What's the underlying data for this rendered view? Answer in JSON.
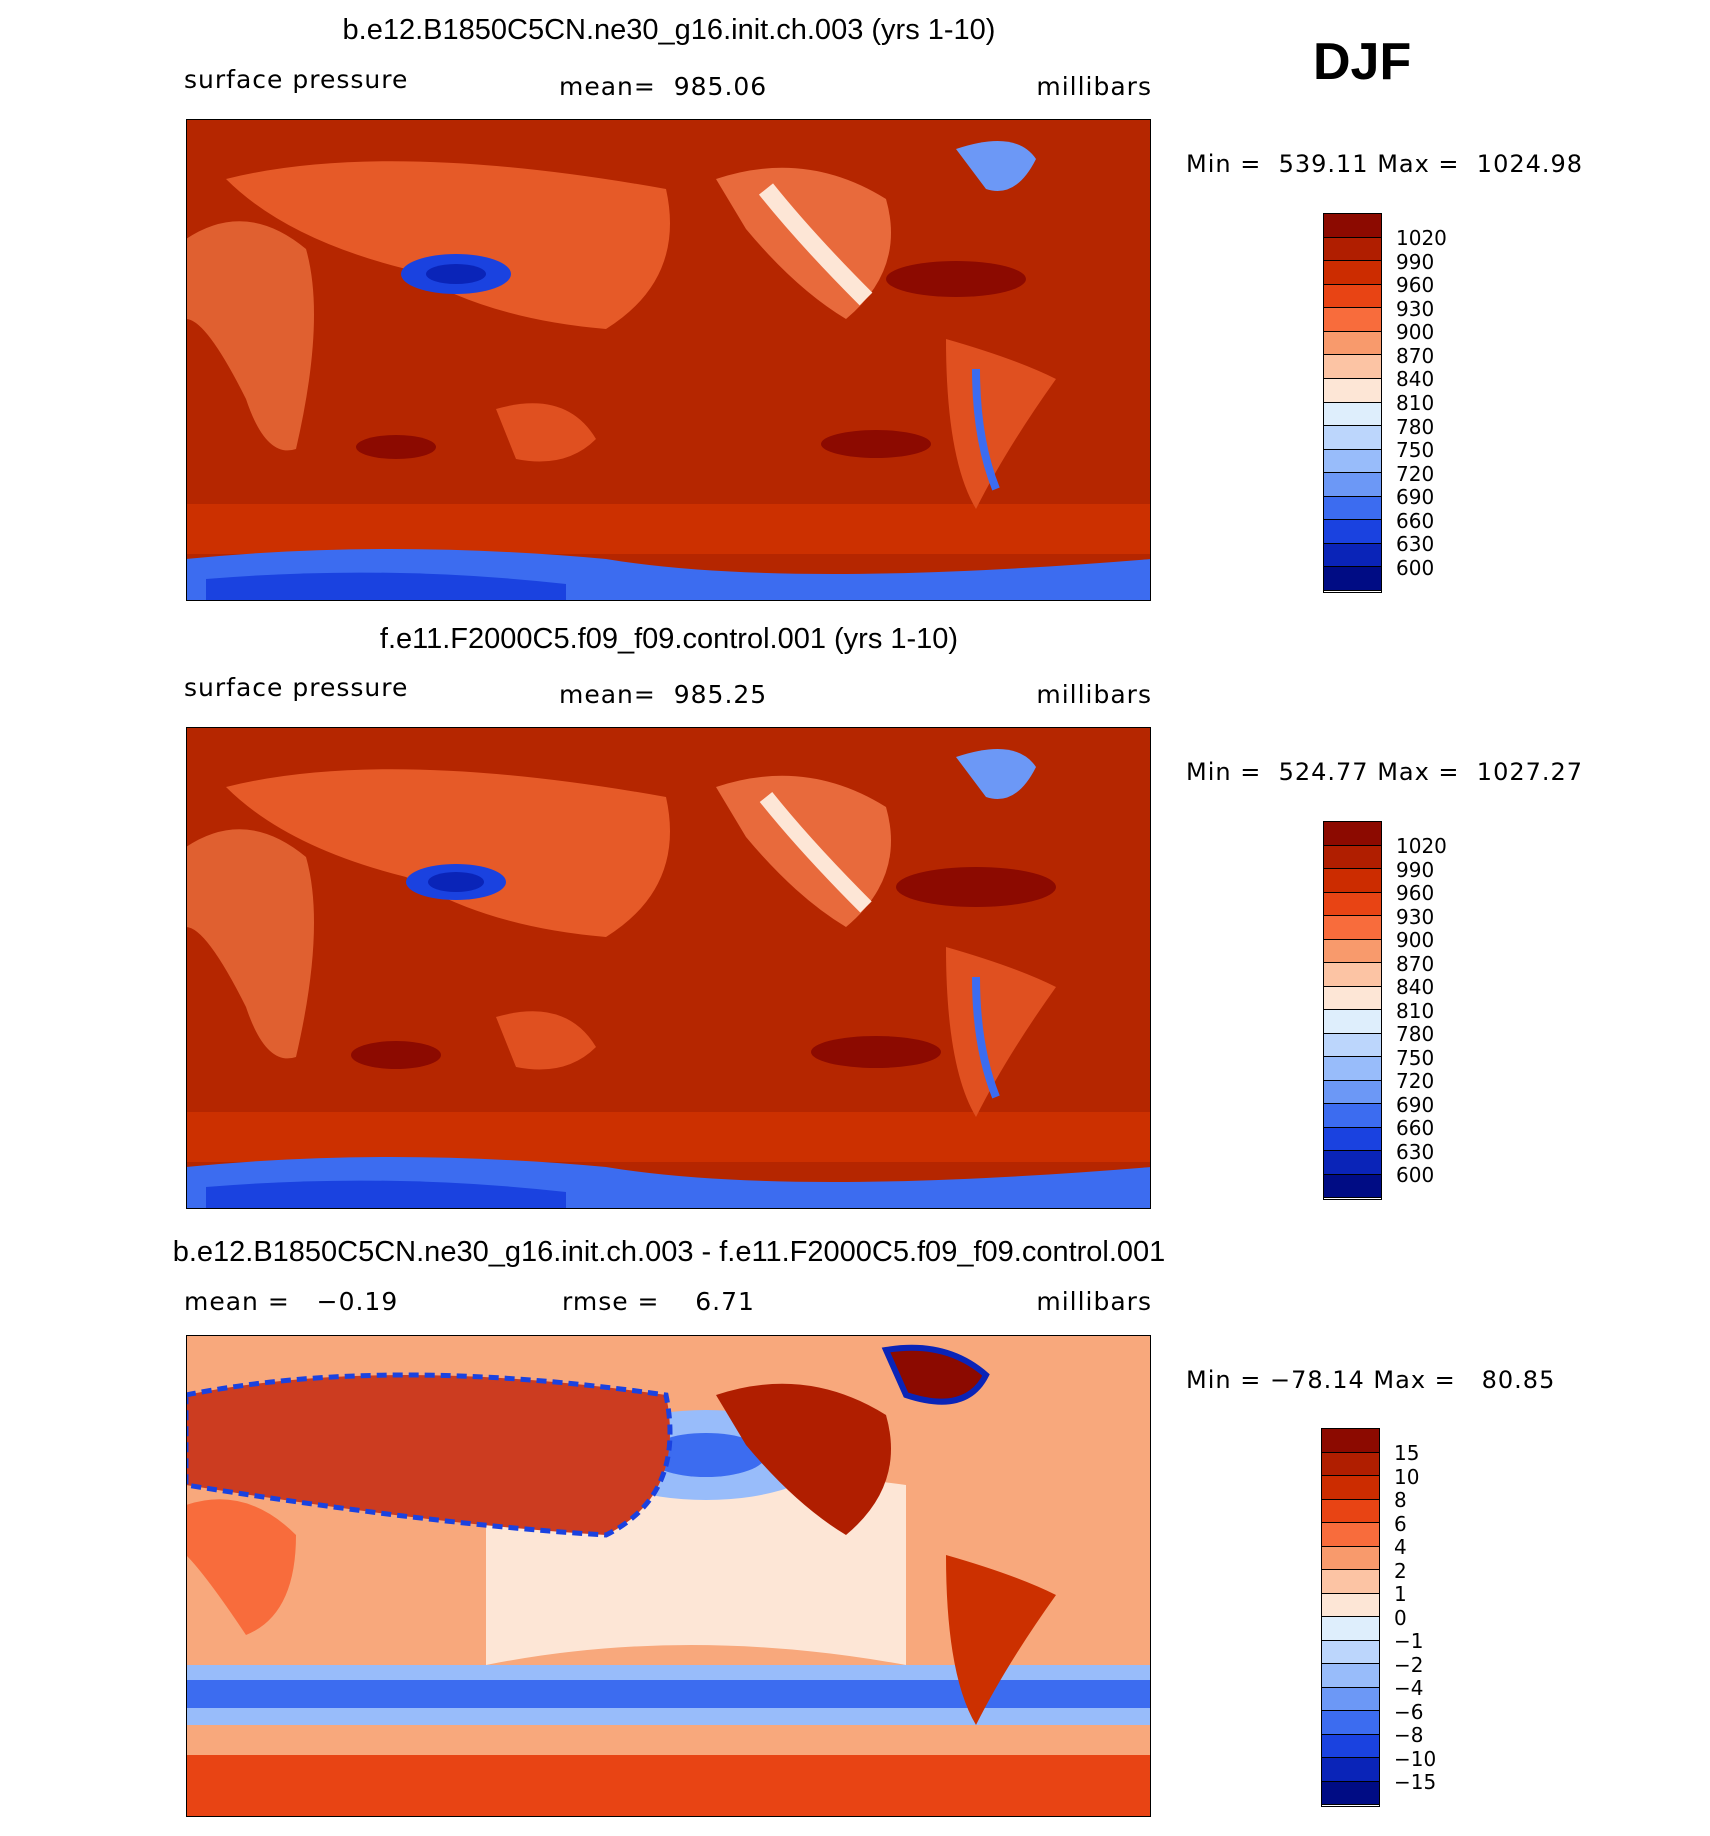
{
  "season": "DJF",
  "panels": [
    {
      "title": "b.e12.B1850C5CN.ne30_g16.init.ch.003 (yrs 1-10)",
      "left": "surface pressure",
      "center": "mean=  985.06",
      "right": "millibars",
      "minmax": "Min =  539.11 Max =  1024.98",
      "colorbar": {
        "labels": [
          "1020",
          "990",
          "960",
          "930",
          "900",
          "870",
          "840",
          "810",
          "780",
          "750",
          "720",
          "690",
          "660",
          "630",
          "600"
        ],
        "colors": [
          "#8c0a00",
          "#b01e00",
          "#cc2c00",
          "#e84414",
          "#f86c3c",
          "#f89a6c",
          "#fcc4a4",
          "#fde6d6",
          "#deeefc",
          "#bcd6fc",
          "#98bcfa",
          "#6c98f6",
          "#3c6cf0",
          "#1a42e0",
          "#0a24b8",
          "#000c84"
        ]
      }
    },
    {
      "title": "f.e11.F2000C5.f09_f09.control.001 (yrs 1-10)",
      "left": "surface pressure",
      "center": "mean=  985.25",
      "right": "millibars",
      "minmax": "Min =  524.77 Max =  1027.27",
      "colorbar": {
        "labels": [
          "1020",
          "990",
          "960",
          "930",
          "900",
          "870",
          "840",
          "810",
          "780",
          "750",
          "720",
          "690",
          "660",
          "630",
          "600"
        ],
        "colors": [
          "#8c0a00",
          "#b01e00",
          "#cc2c00",
          "#e84414",
          "#f86c3c",
          "#f89a6c",
          "#fcc4a4",
          "#fde6d6",
          "#deeefc",
          "#bcd6fc",
          "#98bcfa",
          "#6c98f6",
          "#3c6cf0",
          "#1a42e0",
          "#0a24b8",
          "#000c84"
        ]
      }
    },
    {
      "title": "b.e12.B1850C5CN.ne30_g16.init.ch.003 - f.e11.F2000C5.f09_f09.control.001",
      "left": "mean =   −0.19",
      "center": "rmse =    6.71",
      "right": "millibars",
      "minmax": "Min = −78.14 Max =   80.85",
      "colorbar": {
        "labels": [
          "15",
          "10",
          "8",
          "6",
          "4",
          "2",
          "1",
          "0",
          "−1",
          "−2",
          "−4",
          "−6",
          "−8",
          "−10",
          "−15"
        ],
        "colors": [
          "#8c0a00",
          "#b01e00",
          "#cc2c00",
          "#e84414",
          "#f86c3c",
          "#f89a6c",
          "#fcc4a4",
          "#fde6d6",
          "#deeefc",
          "#bcd6fc",
          "#98bcfa",
          "#6c98f6",
          "#3c6cf0",
          "#1a42e0",
          "#0a24b8",
          "#000c84"
        ]
      }
    }
  ]
}
